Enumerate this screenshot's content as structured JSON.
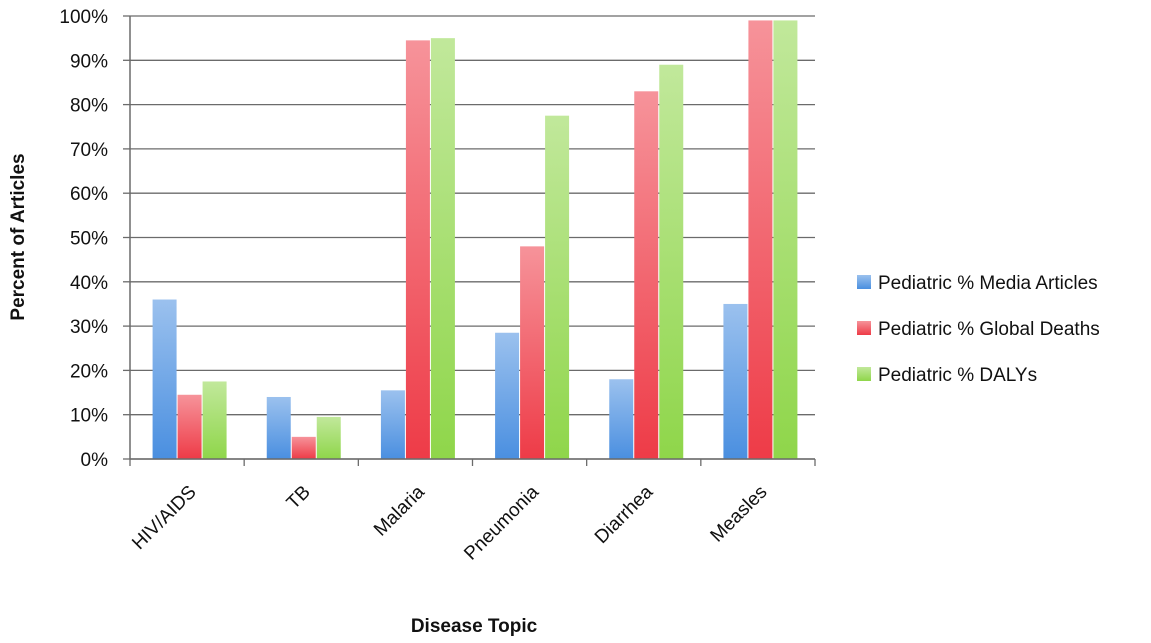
{
  "chart_data": {
    "type": "bar",
    "title": "",
    "xlabel": "Disease Topic",
    "ylabel": "Percent of Articles",
    "ylim": [
      0,
      100
    ],
    "yticks": [
      "0%",
      "10%",
      "20%",
      "30%",
      "40%",
      "50%",
      "60%",
      "70%",
      "80%",
      "90%",
      "100%"
    ],
    "categories": [
      "HIV/AIDS",
      "TB",
      "Malaria",
      "Pneumonia",
      "Diarrhea",
      "Measles"
    ],
    "series": [
      {
        "name": "Pediatric % Media Articles",
        "color": "#4a8fe0",
        "values": [
          36,
          14,
          15.5,
          28.5,
          18,
          35
        ]
      },
      {
        "name": "Pediatric % Global Deaths",
        "color": "#ee3b47",
        "values": [
          14.5,
          5,
          94.5,
          48,
          83,
          99
        ]
      },
      {
        "name": "Pediatric % DALYs",
        "color": "#8fd64a",
        "values": [
          17.5,
          9.5,
          95,
          77.5,
          89,
          99
        ]
      }
    ],
    "grid": true,
    "legend_position": "right"
  }
}
